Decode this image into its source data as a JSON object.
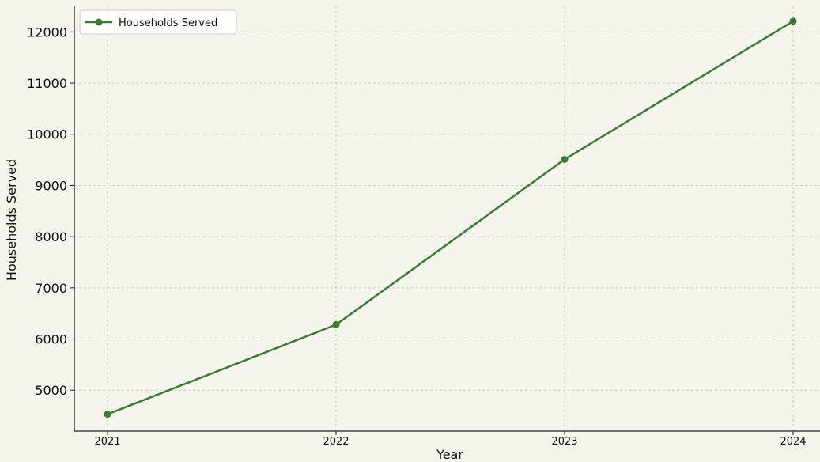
{
  "chart_data": {
    "type": "line",
    "title": "",
    "xlabel": "Year",
    "ylabel": "Households Served",
    "categories": [
      "2021",
      "2022",
      "2023",
      "2024"
    ],
    "series": [
      {
        "name": "Households Served",
        "values": [
          4530,
          6280,
          9510,
          12210
        ],
        "color": "#3a7d32"
      }
    ],
    "y_ticks": [
      "5000",
      "6000",
      "7000",
      "8000",
      "9000",
      "10000",
      "11000",
      "12000"
    ],
    "ylim": [
      4200,
      12500
    ],
    "grid": true,
    "legend": "top-left",
    "marker": "circle"
  }
}
